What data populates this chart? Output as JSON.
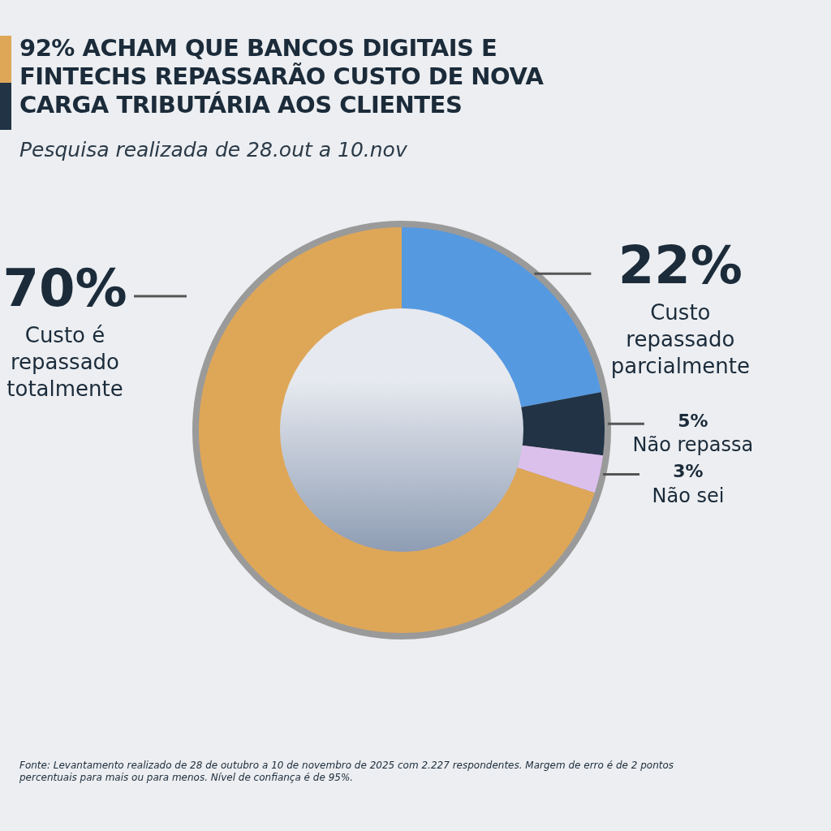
{
  "chart_data": {
    "type": "donut",
    "title": "92% ACHAM QUE BANCOS DIGITAIS E FINTECHS REPASSARÃO CUSTO DE NOVA CARGA TRIBUTÁRIA AOS CLIENTES",
    "subtitle": "Pesquisa realizada de 28.out a 10.nov",
    "categories": [
      "Custo repassado parcialmente",
      "Não repassa",
      "Não sei",
      "Custo é repassado totalmente"
    ],
    "values": [
      22,
      5,
      3,
      70
    ],
    "colors": [
      "#5599e0",
      "#213345",
      "#dcc0ec",
      "#dea758"
    ],
    "value_labels": [
      "22%",
      "5%",
      "3%",
      "70%"
    ],
    "legend": false,
    "annotations": [
      "Fonte: Levantamento realizado de 28 de outubro a 10 de novembro de 2025 com 2.227 respondentes. Margem de erro é de 2 pontos percentuais para mais ou para menos. Nível de confiança é de 95%."
    ]
  }
}
